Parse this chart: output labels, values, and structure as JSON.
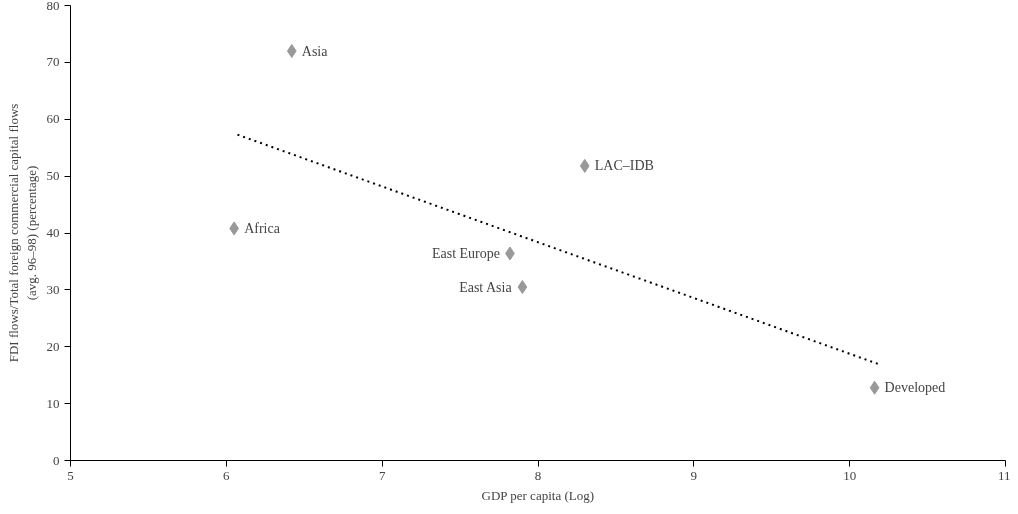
{
  "chart_data": {
    "type": "scatter",
    "xlabel": "GDP per capita (Log)",
    "ylabel": "FDI flows/Total foreign commercial capital flows\n(avg. 96–98) (percentage)",
    "xlim": [
      5,
      11
    ],
    "xticks": [
      5,
      6,
      7,
      8,
      9,
      10,
      11
    ],
    "ylim": [
      0,
      80
    ],
    "yticks": [
      0,
      10,
      20,
      30,
      40,
      50,
      60,
      70,
      80
    ],
    "grid": false,
    "series": [
      {
        "color": "#999999",
        "marker": "diamond",
        "x": [
          6.42,
          6.05,
          7.82,
          7.9,
          8.3,
          10.16
        ],
        "values": [
          72,
          40.8,
          36.4,
          30.5,
          51.8,
          12.8
        ]
      },
      {
        "type": "line",
        "color": "#000000",
        "line_style": "dotted",
        "x": [
          6.05,
          10.18
        ],
        "values": [
          57.5,
          17
        ]
      }
    ],
    "annotations": [
      {
        "text": "Asia",
        "x": 6.42,
        "y": 72
      },
      {
        "text": "Africa",
        "x": 6.05,
        "y": 40.8
      },
      {
        "text": "East Europe",
        "x": 7.82,
        "y": 36.4
      },
      {
        "text": "East Asia",
        "x": 7.9,
        "y": 30.5
      },
      {
        "text": "LAC–IDB",
        "x": 8.3,
        "y": 51.8
      },
      {
        "text": "Developed",
        "x": 10.16,
        "y": 12.8
      }
    ]
  }
}
